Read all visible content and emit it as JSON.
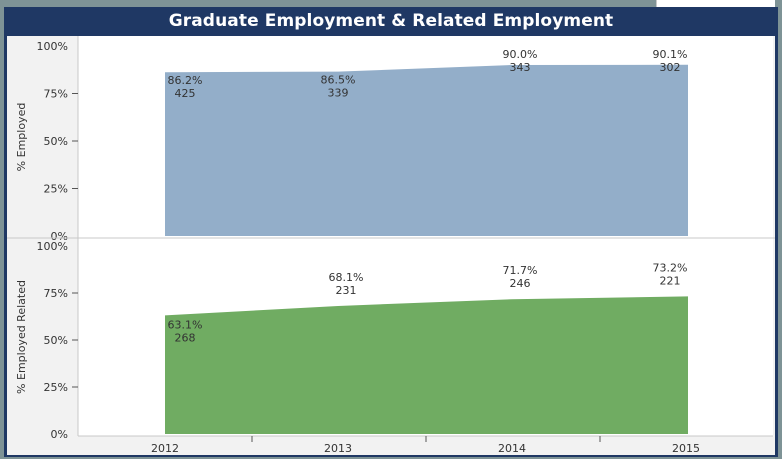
{
  "title": "Graduate Employment & Related Employment",
  "chart_data": [
    {
      "type": "area",
      "ylabel": "% Employed",
      "x": [
        "2012",
        "2013",
        "2014",
        "2015"
      ],
      "values": [
        86.2,
        86.5,
        90.0,
        90.1
      ],
      "value_labels": [
        "86.2%",
        "86.5%",
        "90.0%",
        "90.1%"
      ],
      "counts": [
        "425",
        "339",
        "343",
        "302"
      ],
      "ylim": [
        0,
        100
      ],
      "yticks": [
        "0%",
        "25%",
        "50%",
        "75%",
        "100%"
      ],
      "color": "#93aec9"
    },
    {
      "type": "area",
      "ylabel": "% Employed Related",
      "x": [
        "2012",
        "2013",
        "2014",
        "2015"
      ],
      "values": [
        63.1,
        68.1,
        71.7,
        73.2
      ],
      "value_labels": [
        "63.1%",
        "68.1%",
        "71.7%",
        "73.2%"
      ],
      "counts": [
        "268",
        "231",
        "246",
        "221"
      ],
      "ylim": [
        0,
        100
      ],
      "yticks": [
        "0%",
        "25%",
        "50%",
        "75%",
        "100%"
      ],
      "color": "#70ac62"
    }
  ]
}
